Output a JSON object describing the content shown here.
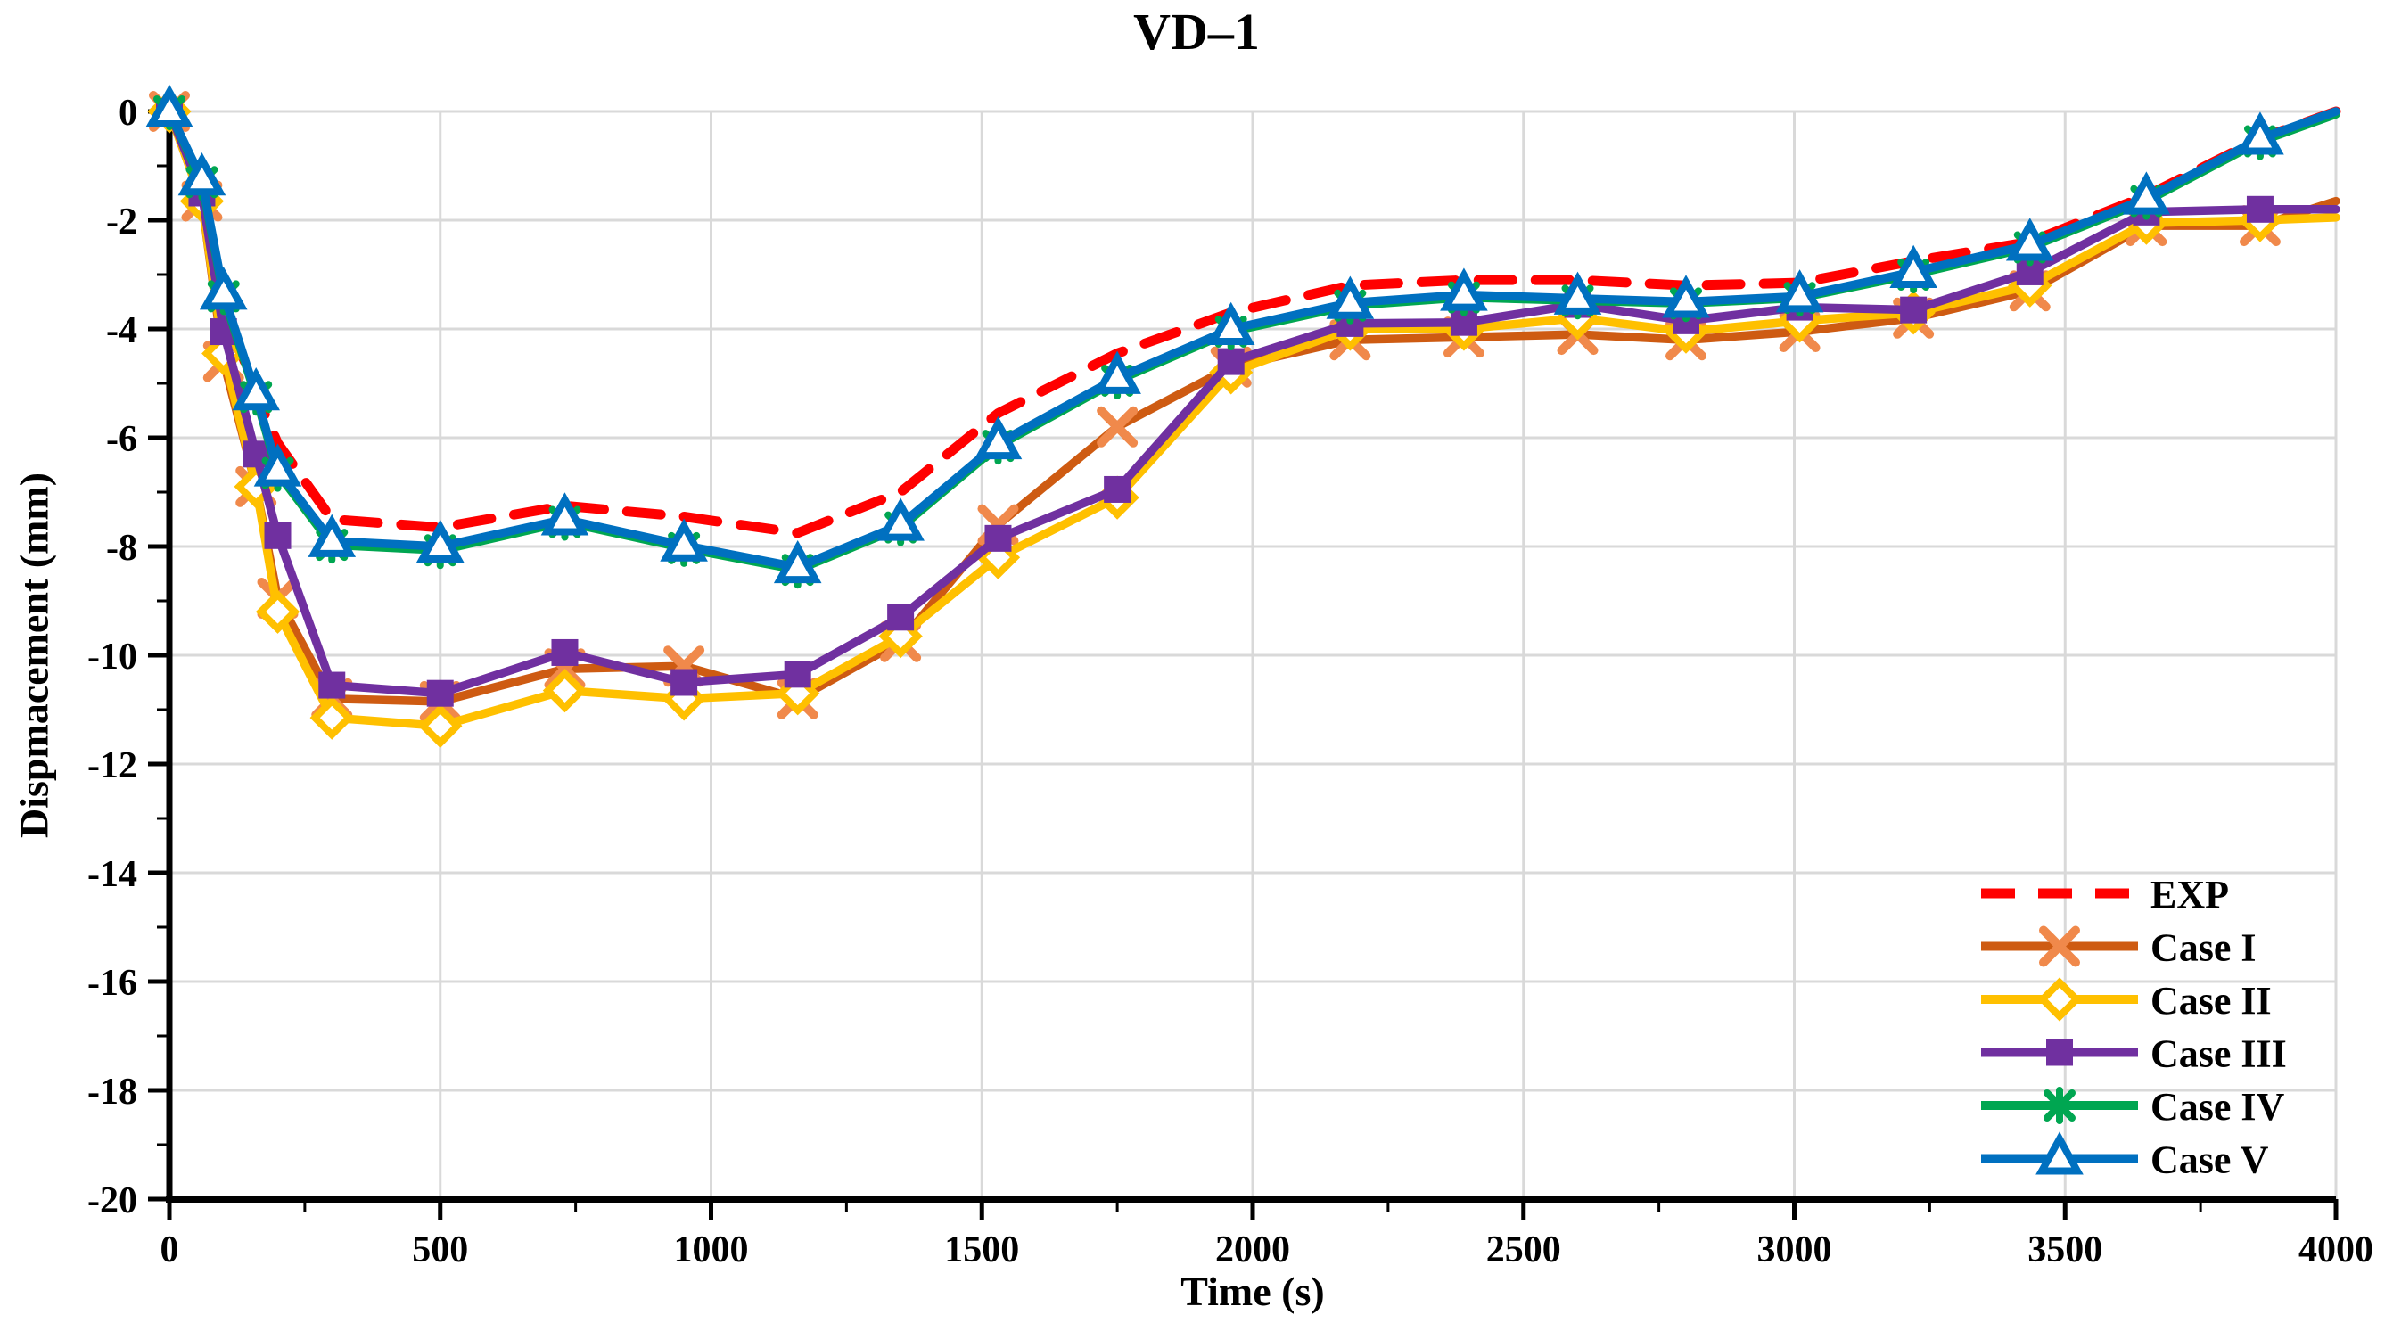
{
  "title": "VD–1",
  "colors": {
    "gridline": "#D9D9D9",
    "axis": "#000000",
    "background": "#FFFFFF",
    "legend_text": "#000000"
  },
  "axes": {
    "x": {
      "label": "Time (s)",
      "min": 0,
      "max": 4000,
      "major_step": 500,
      "minor_step": 250,
      "tick_labels": [
        "0",
        "500",
        "1000",
        "1500",
        "2000",
        "2500",
        "3000",
        "3500",
        "4000"
      ]
    },
    "y": {
      "label": "Dispmacement (mm)",
      "min": -20,
      "max": 0,
      "major_step": 2,
      "minor_step": 1,
      "tick_labels": [
        "0",
        "-2",
        "-4",
        "-6",
        "-8",
        "-10",
        "-12",
        "-14",
        "-16",
        "-18",
        "-20"
      ]
    }
  },
  "legend": {
    "items": [
      "EXP",
      "Case I",
      "Case II",
      "Case III",
      "Case IV",
      "Case V"
    ],
    "position": "lower right"
  },
  "chart_data": {
    "type": "line",
    "title": "VD–1",
    "xlabel": "Time (s)",
    "ylabel": "Dispmacement (mm)",
    "xlim": [
      0,
      4000
    ],
    "ylim": [
      -20,
      0
    ],
    "grid": true,
    "legend_position": "lower right",
    "x": [
      0,
      60,
      100,
      160,
      200,
      300,
      500,
      730,
      950,
      1160,
      1350,
      1530,
      1750,
      1960,
      2180,
      2390,
      2600,
      2800,
      3010,
      3220,
      3435,
      3650,
      3860,
      4000
    ],
    "series": [
      {
        "name": "EXP",
        "color": "#FF0000",
        "marker_color": "#FF0000",
        "line": "dashed",
        "marker": "none",
        "values": [
          0,
          -1.35,
          -3.5,
          -5.2,
          -6.1,
          -7.5,
          -7.65,
          -7.25,
          -7.45,
          -7.75,
          -7.0,
          -5.55,
          -4.45,
          -3.7,
          -3.2,
          -3.1,
          -3.1,
          -3.2,
          -3.15,
          -2.75,
          -2.4,
          -1.55,
          -0.5,
          0.0
        ]
      },
      {
        "name": "Case I",
        "color": "#CE5B12",
        "marker_color": "#F0894B",
        "line": "solid",
        "marker": "x",
        "values": [
          0,
          -1.65,
          -4.6,
          -6.9,
          -8.95,
          -10.8,
          -10.85,
          -10.25,
          -10.2,
          -10.8,
          -9.75,
          -7.6,
          -5.8,
          -4.7,
          -4.2,
          -4.15,
          -4.1,
          -4.2,
          -4.05,
          -3.8,
          -3.3,
          -2.1,
          -2.1,
          -1.65
        ]
      },
      {
        "name": "Case II",
        "color": "#FFC000",
        "marker_color": "#FFC000",
        "line": "solid",
        "marker": "diamond-open",
        "values": [
          0,
          -1.65,
          -4.45,
          -6.9,
          -9.2,
          -11.15,
          -11.3,
          -10.65,
          -10.8,
          -10.7,
          -9.65,
          -8.2,
          -7.1,
          -4.8,
          -4.0,
          -4.0,
          -3.8,
          -4.05,
          -3.85,
          -3.7,
          -3.2,
          -2.05,
          -2.0,
          -1.95
        ]
      },
      {
        "name": "Case III",
        "color": "#7030A0",
        "marker_color": "#7030A0",
        "line": "solid",
        "marker": "square",
        "values": [
          0,
          -1.5,
          -4.05,
          -6.3,
          -7.8,
          -10.55,
          -10.7,
          -9.95,
          -10.5,
          -10.35,
          -9.3,
          -7.85,
          -6.95,
          -4.6,
          -3.9,
          -3.88,
          -3.55,
          -3.85,
          -3.6,
          -3.65,
          -2.95,
          -1.85,
          -1.8,
          -1.8
        ]
      },
      {
        "name": "Case IV",
        "color": "#00A651",
        "marker_color": "#00A651",
        "line": "solid",
        "marker": "asterisk",
        "values": [
          0,
          -1.3,
          -3.4,
          -5.25,
          -6.65,
          -7.97,
          -8.07,
          -7.55,
          -8.03,
          -8.43,
          -7.65,
          -6.15,
          -4.95,
          -4.05,
          -3.57,
          -3.42,
          -3.48,
          -3.53,
          -3.43,
          -3.0,
          -2.5,
          -1.65,
          -0.55,
          -0.05
        ]
      },
      {
        "name": "Case V",
        "color": "#0070C0",
        "marker_color": "#0070C0",
        "line": "solid",
        "marker": "triangle-open",
        "values": [
          0,
          -1.25,
          -3.35,
          -5.2,
          -6.6,
          -7.9,
          -8.0,
          -7.5,
          -7.98,
          -8.38,
          -7.6,
          -6.1,
          -4.9,
          -4.0,
          -3.52,
          -3.37,
          -3.44,
          -3.5,
          -3.4,
          -2.95,
          -2.45,
          -1.6,
          -0.5,
          0.0
        ]
      }
    ]
  }
}
